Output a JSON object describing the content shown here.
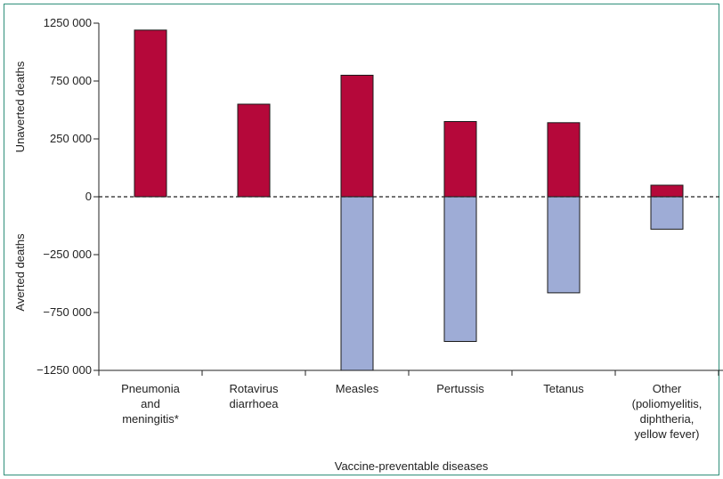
{
  "chart_data": {
    "type": "bar",
    "xlabel": "Vaccine-preventable diseases",
    "ylabel_top": "Unaverted deaths",
    "ylabel_bottom": "Averted deaths",
    "ylim": [
      -1250000,
      1250000
    ],
    "yticks": [
      {
        "value": 1250000,
        "label": "1250 000"
      },
      {
        "value": 750000,
        "label": "750 000"
      },
      {
        "value": 250000,
        "label": "250 000"
      },
      {
        "value": 0,
        "label": "0"
      },
      {
        "value": -250000,
        "label": "−250 000"
      },
      {
        "value": -750000,
        "label": "−750 000"
      },
      {
        "value": -1250000,
        "label": "−1250 000"
      }
    ],
    "y_scale": {
      "values": [
        -1250000,
        -750000,
        -250000,
        0,
        250000,
        750000,
        1250000
      ],
      "positions": [
        0,
        1,
        2,
        3,
        4,
        5,
        6
      ]
    },
    "categories": [
      [
        "Pneumonia",
        "and",
        "meningitis*"
      ],
      [
        "Rotavirus",
        "diarrhoea"
      ],
      [
        "Measles"
      ],
      [
        "Pertussis"
      ],
      [
        "Tetanus"
      ],
      [
        "Other",
        "(poliomyelitis,",
        "diphtheria,",
        "yellow fever)"
      ]
    ],
    "series": [
      {
        "label": "Unaverted deaths",
        "color": "#b5083a",
        "values": [
          1190000,
          550000,
          800000,
          400000,
          390000,
          50000
        ]
      },
      {
        "label": "Averted deaths",
        "color": "#9eacd6",
        "values": [
          0,
          0,
          -1250000,
          -1000000,
          -580000,
          -140000
        ]
      }
    ],
    "zero_line": "dashed"
  }
}
